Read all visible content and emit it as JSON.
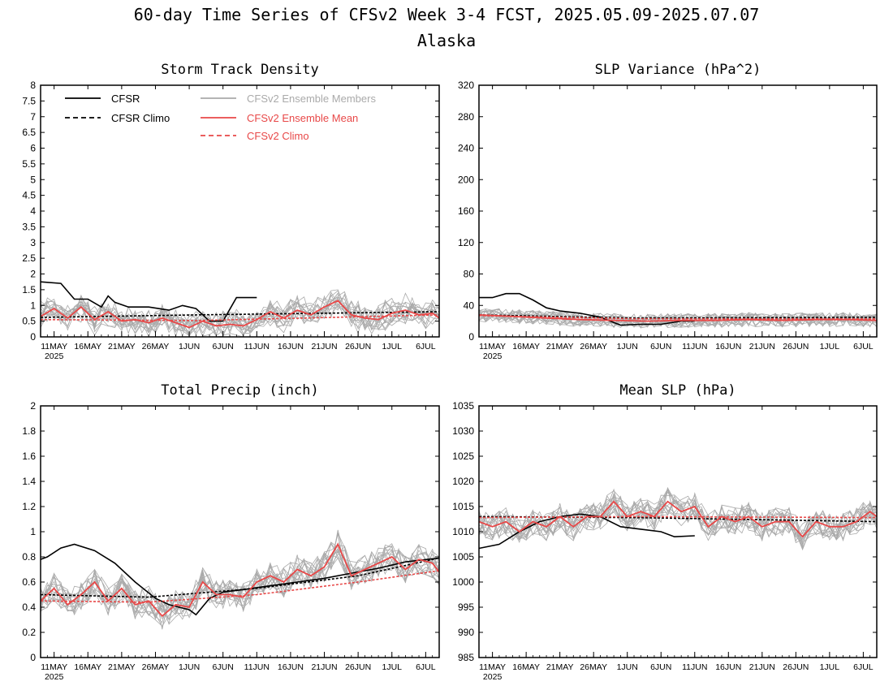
{
  "header": {
    "title": "60-day Time Series of CFSv2 Week 3-4 FCST, 2025.05.09-2025.07.07",
    "subtitle": "Alaska"
  },
  "legend": {
    "cfsr": "CFSR",
    "cfsr_climo": "CFSR Climo",
    "members": "CFSv2 Ensemble Members",
    "ens_mean": "CFSv2 Ensemble Mean",
    "cfsv2_climo": "CFSv2 Climo"
  },
  "colors": {
    "cfsr": "#000000",
    "cfsr_climo": "#000000",
    "members": "#aaaaaa",
    "ens_mean": "#e84848",
    "cfsv2_climo": "#e84848"
  },
  "date_ticks": [
    "11MAY",
    "16MAY",
    "21MAY",
    "26MAY",
    "1JUN",
    "6JUN",
    "11JUN",
    "16JUN",
    "21JUN",
    "26JUN",
    "1JUL",
    "6JUL"
  ],
  "year_label": "2025",
  "chart_data": [
    {
      "type": "line",
      "title": "Storm Track Density",
      "x_start": "2025-05-09",
      "x_end": "2025-07-07",
      "ylim": [
        0,
        8
      ],
      "yticks": [
        "0",
        "0.5",
        "1",
        "1.5",
        "2",
        "2.5",
        "3",
        "3.5",
        "4",
        "4.5",
        "5",
        "5.5",
        "6",
        "6.5",
        "7",
        "7.5",
        "8"
      ],
      "series": [
        {
          "name": "CFSR",
          "x": [
            "2025-05-09",
            "2025-05-12",
            "2025-05-14",
            "2025-05-16",
            "2025-05-18",
            "2025-05-19",
            "2025-05-20",
            "2025-05-22",
            "2025-05-25",
            "2025-05-28",
            "2025-05-30",
            "2025-06-01",
            "2025-06-03",
            "2025-06-05",
            "2025-06-07",
            "2025-06-10"
          ],
          "y": [
            1.75,
            1.7,
            1.2,
            1.2,
            0.95,
            1.3,
            1.1,
            0.95,
            0.95,
            0.85,
            1.0,
            0.9,
            0.5,
            0.5,
            1.25,
            1.25
          ]
        },
        {
          "name": "CFSR Climo",
          "x": [
            "2025-05-09",
            "2025-06-01",
            "2025-07-07"
          ],
          "y": [
            0.62,
            0.7,
            0.8
          ]
        },
        {
          "name": "CFSv2 Ensemble Mean",
          "x": [
            "2025-05-09",
            "2025-05-11",
            "2025-05-13",
            "2025-05-15",
            "2025-05-17",
            "2025-05-19",
            "2025-05-21",
            "2025-05-23",
            "2025-05-25",
            "2025-05-27",
            "2025-05-29",
            "2025-05-31",
            "2025-06-02",
            "2025-06-04",
            "2025-06-06",
            "2025-06-08",
            "2025-06-10",
            "2025-06-12",
            "2025-06-14",
            "2025-06-16",
            "2025-06-18",
            "2025-06-20",
            "2025-06-22",
            "2025-06-24",
            "2025-06-26",
            "2025-06-28",
            "2025-06-30",
            "2025-07-02",
            "2025-07-04",
            "2025-07-06",
            "2025-07-07"
          ],
          "y": [
            0.65,
            0.9,
            0.6,
            0.95,
            0.55,
            0.8,
            0.5,
            0.55,
            0.45,
            0.6,
            0.45,
            0.3,
            0.5,
            0.35,
            0.4,
            0.35,
            0.55,
            0.8,
            0.6,
            0.85,
            0.7,
            0.95,
            1.15,
            0.7,
            0.6,
            0.55,
            0.75,
            0.85,
            0.7,
            0.75,
            0.6
          ]
        },
        {
          "name": "CFSv2 Climo",
          "x": [
            "2025-05-09",
            "2025-06-01",
            "2025-07-07"
          ],
          "y": [
            0.55,
            0.52,
            0.7
          ]
        }
      ]
    },
    {
      "type": "line",
      "title": "SLP Variance (hPa^2)",
      "x_start": "2025-05-09",
      "x_end": "2025-07-07",
      "ylim": [
        0,
        320
      ],
      "yticks": [
        "0",
        "40",
        "80",
        "120",
        "160",
        "200",
        "240",
        "280",
        "320"
      ],
      "series": [
        {
          "name": "CFSR",
          "x": [
            "2025-05-09",
            "2025-05-11",
            "2025-05-13",
            "2025-05-15",
            "2025-05-17",
            "2025-05-19",
            "2025-05-21",
            "2025-05-24",
            "2025-05-27",
            "2025-05-30",
            "2025-06-02",
            "2025-06-05",
            "2025-06-08",
            "2025-06-10"
          ],
          "y": [
            50,
            50,
            55,
            55,
            47,
            37,
            33,
            30,
            25,
            15,
            16,
            16,
            20,
            20
          ]
        },
        {
          "name": "CFSR Climo",
          "x": [
            "2025-05-09",
            "2025-06-01",
            "2025-07-07"
          ],
          "y": [
            28,
            24,
            25
          ]
        },
        {
          "name": "CFSv2 Ensemble Mean",
          "x": [
            "2025-05-09",
            "2025-05-14",
            "2025-05-19",
            "2025-05-24",
            "2025-05-29",
            "2025-06-03",
            "2025-06-08",
            "2025-06-13",
            "2025-06-18",
            "2025-06-23",
            "2025-06-28",
            "2025-07-03",
            "2025-07-07"
          ],
          "y": [
            28,
            26,
            24,
            22,
            21,
            20,
            21,
            21,
            22,
            21,
            22,
            22,
            21
          ]
        },
        {
          "name": "CFSv2 Climo",
          "x": [
            "2025-05-09",
            "2025-06-01",
            "2025-07-07"
          ],
          "y": [
            27,
            23,
            23
          ]
        }
      ]
    },
    {
      "type": "line",
      "title": "Total Precip (inch)",
      "x_start": "2025-05-09",
      "x_end": "2025-07-07",
      "ylim": [
        0,
        2
      ],
      "yticks": [
        "0",
        "0.2",
        "0.4",
        "0.6",
        "0.8",
        "1",
        "1.2",
        "1.4",
        "1.6",
        "1.8",
        "2"
      ],
      "series": [
        {
          "name": "CFSR",
          "x": [
            "2025-05-09",
            "2025-05-10",
            "2025-05-12",
            "2025-05-14",
            "2025-05-17",
            "2025-05-20",
            "2025-05-23",
            "2025-05-26",
            "2025-05-28",
            "2025-05-31",
            "2025-06-01",
            "2025-06-03",
            "2025-06-05",
            "2025-06-08",
            "2025-06-12",
            "2025-06-16",
            "2025-06-20",
            "2025-06-24",
            "2025-06-28",
            "2025-07-02",
            "2025-07-07"
          ],
          "y": [
            0.78,
            0.8,
            0.87,
            0.9,
            0.85,
            0.75,
            0.6,
            0.47,
            0.42,
            0.38,
            0.34,
            0.47,
            0.52,
            0.54,
            0.57,
            0.6,
            0.63,
            0.67,
            0.71,
            0.76,
            0.79
          ]
        },
        {
          "name": "CFSR Climo",
          "x": [
            "2025-05-09",
            "2025-05-25",
            "2025-06-10",
            "2025-06-25",
            "2025-07-07"
          ],
          "y": [
            0.5,
            0.48,
            0.55,
            0.65,
            0.79
          ]
        },
        {
          "name": "CFSv2 Ensemble Mean",
          "x": [
            "2025-05-09",
            "2025-05-11",
            "2025-05-13",
            "2025-05-15",
            "2025-05-17",
            "2025-05-19",
            "2025-05-21",
            "2025-05-23",
            "2025-05-25",
            "2025-05-27",
            "2025-05-29",
            "2025-05-31",
            "2025-06-02",
            "2025-06-04",
            "2025-06-06",
            "2025-06-08",
            "2025-06-10",
            "2025-06-12",
            "2025-06-14",
            "2025-06-16",
            "2025-06-18",
            "2025-06-20",
            "2025-06-22",
            "2025-06-24",
            "2025-06-26",
            "2025-06-28",
            "2025-06-30",
            "2025-07-02",
            "2025-07-04",
            "2025-07-06",
            "2025-07-07"
          ],
          "y": [
            0.45,
            0.55,
            0.42,
            0.5,
            0.6,
            0.45,
            0.55,
            0.42,
            0.45,
            0.33,
            0.42,
            0.4,
            0.6,
            0.5,
            0.5,
            0.48,
            0.6,
            0.65,
            0.6,
            0.7,
            0.65,
            0.72,
            0.9,
            0.65,
            0.7,
            0.75,
            0.8,
            0.7,
            0.78,
            0.75,
            0.68
          ]
        },
        {
          "name": "CFSv2 Climo",
          "x": [
            "2025-05-09",
            "2025-05-25",
            "2025-06-10",
            "2025-06-25",
            "2025-07-07"
          ],
          "y": [
            0.45,
            0.44,
            0.5,
            0.6,
            0.69
          ]
        }
      ]
    },
    {
      "type": "line",
      "title": "Mean SLP (hPa)",
      "x_start": "2025-05-09",
      "x_end": "2025-07-07",
      "ylim": [
        985,
        1035
      ],
      "yticks": [
        "985",
        "990",
        "995",
        "1000",
        "1005",
        "1010",
        "1015",
        "1020",
        "1025",
        "1030",
        "1035"
      ],
      "series": [
        {
          "name": "CFSR",
          "x": [
            "2025-05-09",
            "2025-05-12",
            "2025-05-15",
            "2025-05-18",
            "2025-05-21",
            "2025-05-24",
            "2025-05-27",
            "2025-05-30",
            "2025-06-02",
            "2025-06-05",
            "2025-06-07",
            "2025-06-10"
          ],
          "y": [
            1006.7,
            1007.5,
            1010.0,
            1012.0,
            1013.0,
            1013.5,
            1013.0,
            1011.0,
            1010.5,
            1010.0,
            1009.0,
            1009.2
          ]
        },
        {
          "name": "CFSR Climo",
          "x": [
            "2025-05-09",
            "2025-06-01",
            "2025-07-07"
          ],
          "y": [
            1013.0,
            1012.8,
            1012.0
          ]
        },
        {
          "name": "CFSv2 Ensemble Mean",
          "x": [
            "2025-05-09",
            "2025-05-11",
            "2025-05-13",
            "2025-05-15",
            "2025-05-17",
            "2025-05-19",
            "2025-05-21",
            "2025-05-23",
            "2025-05-25",
            "2025-05-27",
            "2025-05-29",
            "2025-05-31",
            "2025-06-02",
            "2025-06-04",
            "2025-06-06",
            "2025-06-08",
            "2025-06-10",
            "2025-06-12",
            "2025-06-14",
            "2025-06-16",
            "2025-06-18",
            "2025-06-20",
            "2025-06-22",
            "2025-06-24",
            "2025-06-26",
            "2025-06-28",
            "2025-06-30",
            "2025-07-02",
            "2025-07-04",
            "2025-07-06",
            "2025-07-07"
          ],
          "y": [
            1012,
            1011,
            1012,
            1010,
            1012,
            1011,
            1013,
            1011,
            1013,
            1013,
            1016,
            1013,
            1014,
            1013,
            1016,
            1014,
            1015,
            1011,
            1013,
            1012,
            1013,
            1011,
            1012,
            1012,
            1009,
            1012,
            1011,
            1011,
            1012,
            1014,
            1013
          ]
        },
        {
          "name": "CFSv2 Climo",
          "x": [
            "2025-05-09",
            "2025-06-01",
            "2025-07-07"
          ],
          "y": [
            1012.8,
            1013.0,
            1012.8
          ]
        }
      ]
    }
  ]
}
